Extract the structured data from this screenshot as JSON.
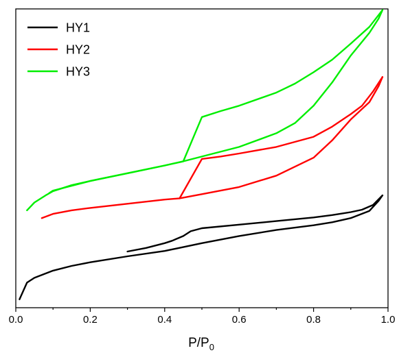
{
  "chart_data": {
    "type": "line",
    "xlabel": "P/P",
    "xlabel_sub": "0",
    "ylabel": "",
    "xlim": [
      0,
      1.0
    ],
    "ylim": [
      0,
      100
    ],
    "y_axis_ticks_shown": false,
    "grid": false,
    "legend": {
      "position": "top-left"
    },
    "x_ticks": [
      {
        "value": 0.0,
        "label": "0.0"
      },
      {
        "value": 0.2,
        "label": "0.2"
      },
      {
        "value": 0.4,
        "label": "0.4"
      },
      {
        "value": 0.6,
        "label": "0.6"
      },
      {
        "value": 0.8,
        "label": "0.8"
      },
      {
        "value": 1.0,
        "label": "1.0"
      }
    ],
    "series": [
      {
        "name": "HY1",
        "color": "#000000",
        "adsorption": [
          [
            0.01,
            2.8
          ],
          [
            0.03,
            8.4
          ],
          [
            0.05,
            10.0
          ],
          [
            0.1,
            12.4
          ],
          [
            0.15,
            14.0
          ],
          [
            0.2,
            15.2
          ],
          [
            0.3,
            17.2
          ],
          [
            0.4,
            19.0
          ],
          [
            0.5,
            21.6
          ],
          [
            0.6,
            24.0
          ],
          [
            0.7,
            26.0
          ],
          [
            0.8,
            27.6
          ],
          [
            0.85,
            28.6
          ],
          [
            0.9,
            30.0
          ],
          [
            0.95,
            32.4
          ],
          [
            0.975,
            35.8
          ],
          [
            0.985,
            37.6
          ]
        ],
        "desorption": [
          [
            0.985,
            37.6
          ],
          [
            0.96,
            34.4
          ],
          [
            0.93,
            32.8
          ],
          [
            0.9,
            32.0
          ],
          [
            0.85,
            31.0
          ],
          [
            0.8,
            30.2
          ],
          [
            0.7,
            29.0
          ],
          [
            0.6,
            27.8
          ],
          [
            0.5,
            26.6
          ],
          [
            0.47,
            25.6
          ],
          [
            0.45,
            24.0
          ],
          [
            0.42,
            22.4
          ],
          [
            0.4,
            21.6
          ],
          [
            0.35,
            20.0
          ],
          [
            0.3,
            18.8
          ]
        ]
      },
      {
        "name": "HY2",
        "color": "#ff0000",
        "adsorption": [
          [
            0.07,
            30.0
          ],
          [
            0.1,
            31.4
          ],
          [
            0.15,
            32.6
          ],
          [
            0.2,
            33.4
          ],
          [
            0.3,
            34.8
          ],
          [
            0.4,
            36.2
          ],
          [
            0.44,
            36.6
          ],
          [
            0.5,
            38.0
          ],
          [
            0.6,
            40.4
          ],
          [
            0.7,
            44.2
          ],
          [
            0.8,
            50.2
          ],
          [
            0.85,
            56.0
          ],
          [
            0.9,
            63.0
          ],
          [
            0.95,
            68.8
          ],
          [
            0.975,
            74.2
          ],
          [
            0.985,
            77.2
          ]
        ],
        "desorption": [
          [
            0.985,
            77.2
          ],
          [
            0.96,
            72.4
          ],
          [
            0.93,
            67.6
          ],
          [
            0.9,
            64.8
          ],
          [
            0.85,
            60.6
          ],
          [
            0.8,
            57.2
          ],
          [
            0.7,
            53.8
          ],
          [
            0.6,
            51.6
          ],
          [
            0.55,
            50.6
          ],
          [
            0.5,
            49.8
          ],
          [
            0.44,
            36.6
          ]
        ]
      },
      {
        "name": "HY3",
        "color": "#00ee00",
        "adsorption": [
          [
            0.03,
            32.6
          ],
          [
            0.05,
            35.2
          ],
          [
            0.08,
            37.6
          ],
          [
            0.1,
            39.0
          ],
          [
            0.15,
            41.0
          ],
          [
            0.2,
            42.4
          ],
          [
            0.3,
            45.0
          ],
          [
            0.4,
            47.6
          ],
          [
            0.45,
            49.0
          ],
          [
            0.5,
            50.6
          ],
          [
            0.6,
            53.8
          ],
          [
            0.7,
            58.4
          ],
          [
            0.75,
            61.8
          ],
          [
            0.8,
            67.6
          ],
          [
            0.85,
            75.4
          ],
          [
            0.9,
            84.4
          ],
          [
            0.95,
            92.0
          ],
          [
            0.975,
            96.8
          ],
          [
            0.985,
            99.6
          ]
        ],
        "desorption": [
          [
            0.985,
            99.6
          ],
          [
            0.95,
            94.0
          ],
          [
            0.9,
            88.4
          ],
          [
            0.85,
            83.0
          ],
          [
            0.8,
            78.8
          ],
          [
            0.75,
            75.0
          ],
          [
            0.7,
            72.0
          ],
          [
            0.6,
            67.6
          ],
          [
            0.55,
            65.8
          ],
          [
            0.5,
            63.8
          ],
          [
            0.45,
            49.0
          ],
          [
            0.4,
            47.6
          ],
          [
            0.3,
            45.0
          ],
          [
            0.2,
            42.4
          ],
          [
            0.1,
            39.2
          ],
          [
            0.09,
            38.4
          ]
        ]
      }
    ]
  }
}
